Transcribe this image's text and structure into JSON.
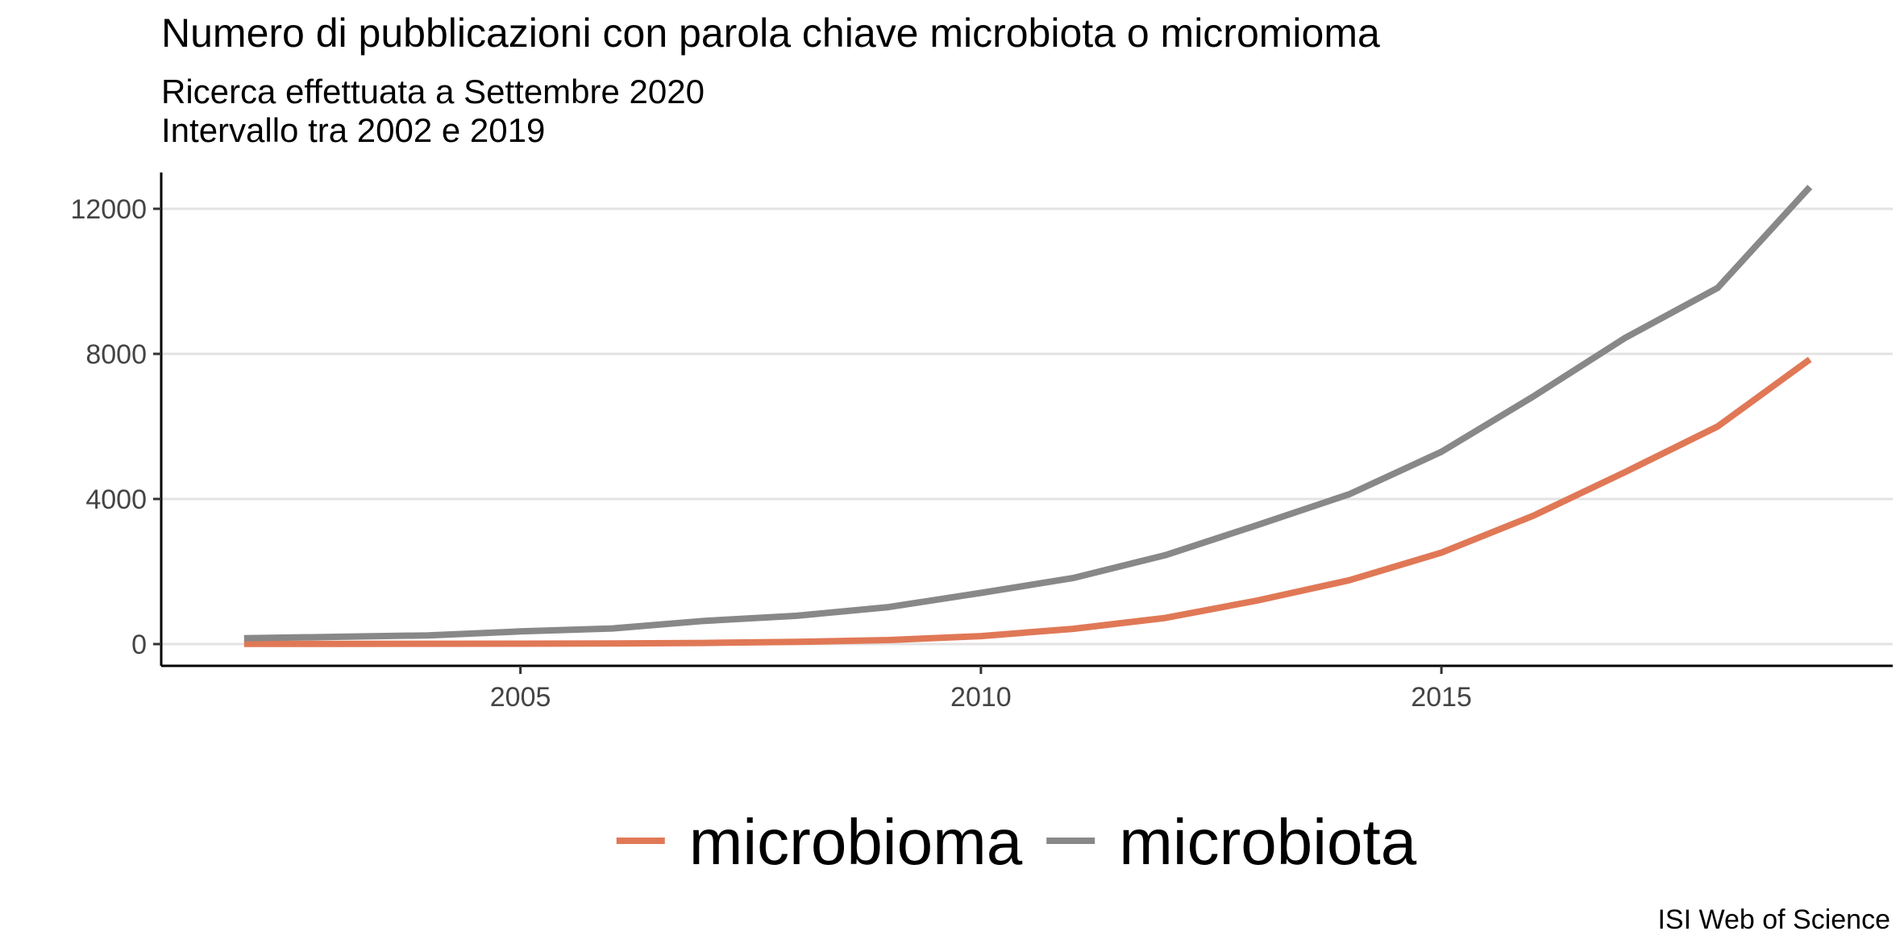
{
  "chart_data": {
    "type": "line",
    "title": "Numero di pubblicazioni con parola chiave microbiota o micromioma",
    "subtitle_lines": [
      "Ricerca effettuata a Settembre 2020",
      "Intervallo tra 2002 e 2019"
    ],
    "caption": "ISI Web of Science",
    "xlabel": "",
    "ylabel": "",
    "xlim": [
      2001.1,
      2019.9
    ],
    "ylim": [
      -600,
      13000
    ],
    "x_ticks": [
      2005,
      2010,
      2015
    ],
    "x_tick_labels": [
      "2005",
      "2010",
      "2015"
    ],
    "y_ticks": [
      0,
      4000,
      8000,
      12000
    ],
    "y_tick_labels": [
      "0",
      "4000",
      "8000",
      "12000"
    ],
    "grid": "horizontal-major",
    "legend_position": "bottom",
    "x": [
      2002,
      2003,
      2004,
      2005,
      2006,
      2007,
      2008,
      2009,
      2010,
      2011,
      2012,
      2013,
      2014,
      2015,
      2016,
      2017,
      2018,
      2019
    ],
    "series": [
      {
        "name": "microbioma",
        "color": "#E07856",
        "values": [
          5,
          5,
          8,
          10,
          15,
          30,
          60,
          110,
          220,
          420,
          720,
          1200,
          1760,
          2520,
          3540,
          4750,
          6000,
          7850
        ]
      },
      {
        "name": "microbiota",
        "color": "#888888",
        "values": [
          160,
          200,
          240,
          350,
          430,
          640,
          780,
          1020,
          1410,
          1820,
          2450,
          3280,
          4130,
          5300,
          6830,
          8450,
          9820,
          12600
        ]
      }
    ]
  }
}
